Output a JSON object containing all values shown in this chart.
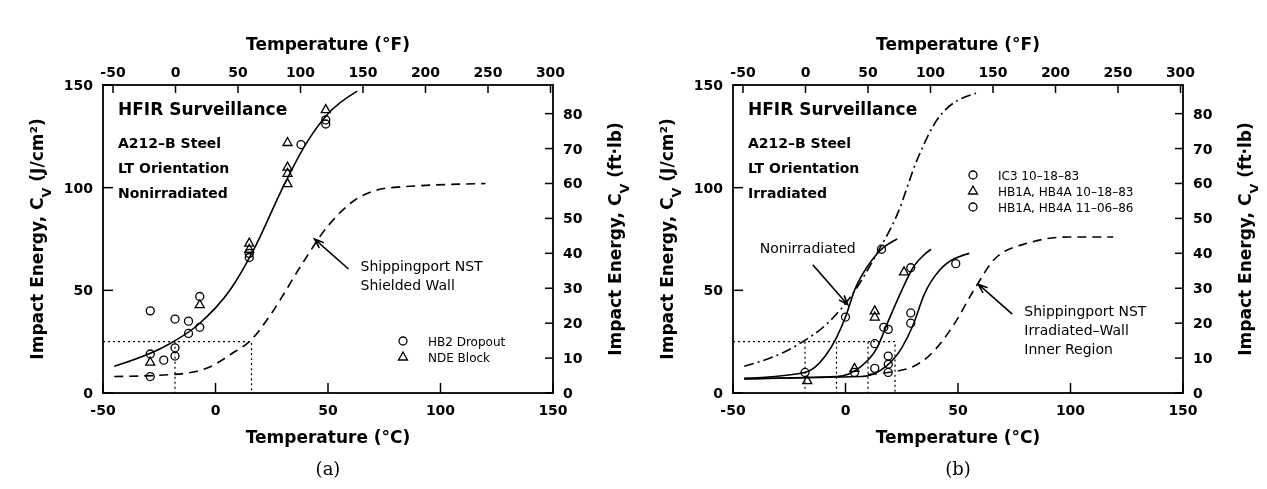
{
  "chart_data": [
    {
      "type": "scatter",
      "title": "(a)",
      "xlabel": "Temperature (°C)",
      "x2label": "Temperature (°F)",
      "ylabel": "Impact Energy, C$_{V}$ (J/cm²)",
      "y2label": "Impact Energy, C$_{V}$ (ft·lb)",
      "xlim": [
        -50,
        150
      ],
      "xticks": [
        -50,
        0,
        50,
        100,
        150
      ],
      "x2lim": [
        -58,
        302
      ],
      "x2ticks": [
        -50,
        0,
        50,
        100,
        150,
        200,
        250,
        300
      ],
      "ylim": [
        0,
        150
      ],
      "yticks": [
        0,
        50,
        100,
        150
      ],
      "y2lim": [
        0,
        88.2
      ],
      "y2ticks": [
        0,
        10,
        20,
        30,
        40,
        50,
        60,
        70,
        80
      ],
      "grid": false,
      "legend": "bottom right",
      "annotations": [
        "HFIR Surveillance",
        "A212–B Steel",
        "LT Orientation",
        "Nonirradiated",
        {
          "text": "Shippingport NST\nShielded Wall",
          "x": 44,
          "y": 75
        }
      ],
      "series": [
        {
          "name": "HB2 Dropout",
          "marker": "circle",
          "color": "#000000",
          "x": [
            -29,
            -29,
            -29,
            -23,
            -18,
            -18,
            -18,
            -12,
            -12,
            -7,
            -7,
            15,
            15,
            38,
            49,
            49
          ],
          "values": [
            40,
            19,
            8,
            16,
            36,
            22,
            18,
            35,
            29,
            47,
            32,
            66,
            68,
            121,
            131,
            133
          ]
        },
        {
          "name": "NDE Block",
          "marker": "triangle",
          "color": "#000000",
          "x": [
            -29,
            -7,
            15,
            15,
            32,
            32,
            32,
            32,
            49
          ],
          "values": [
            15,
            43,
            70,
            73,
            122,
            110,
            107,
            102,
            138
          ]
        },
        {
          "type": "line",
          "line_style": "solid",
          "color": "#000000",
          "x": [
            -45,
            -22,
            -8,
            7,
            18,
            29,
            40,
            50,
            63
          ],
          "values": [
            13,
            23,
            33,
            51,
            72,
            98,
            121,
            136,
            147
          ]
        },
        {
          "type": "line",
          "line_style": "dashed",
          "color": "#000000",
          "x": [
            -45,
            -19,
            -4,
            7,
            16,
            25,
            38,
            49,
            62,
            78,
            120
          ],
          "values": [
            8,
            9,
            12,
            19,
            26,
            39,
            62,
            80,
            94,
            100,
            102
          ]
        },
        {
          "type": "line",
          "line_style": "dotted",
          "color": "#000000",
          "x": [
            -50,
            16,
            16
          ],
          "values": [
            25,
            25,
            0
          ]
        },
        {
          "type": "line",
          "line_style": "dotted",
          "color": "#000000",
          "x": [
            -18,
            -18
          ],
          "values": [
            25,
            0
          ]
        }
      ]
    },
    {
      "type": "scatter",
      "title": "(b)",
      "xlabel": "Temperature (°C)",
      "x2label": "Temperature (°F)",
      "ylabel": "Impact Energy, C$_{V}$ (J/cm²)",
      "y2label": "Impact Energy, C$_{V}$ (ft·lb)",
      "xlim": [
        -50,
        150
      ],
      "xticks": [
        -50,
        0,
        50,
        100,
        150
      ],
      "x2lim": [
        -58,
        302
      ],
      "x2ticks": [
        -50,
        0,
        50,
        100,
        150,
        200,
        250,
        300
      ],
      "ylim": [
        0,
        150
      ],
      "yticks": [
        0,
        50,
        100,
        150
      ],
      "y2lim": [
        0,
        88.2
      ],
      "y2ticks": [
        0,
        10,
        20,
        30,
        40,
        50,
        60,
        70,
        80
      ],
      "grid": false,
      "legend": "top right",
      "annotations": [
        "HFIR Surveillance",
        "A212–B Steel",
        "LT Orientation",
        "Irradiated",
        {
          "text": "Nonirradiated",
          "x": 1,
          "y": 43
        },
        {
          "text": "Shippingport NST\nIrradiated–Wall\nInner Region",
          "x": 59,
          "y": 53
        }
      ],
      "series": [
        {
          "name": "IC3 10–18–83",
          "marker": "circle",
          "color": "#000000",
          "x": [
            -18,
            0,
            16
          ],
          "values": [
            10,
            37,
            70
          ]
        },
        {
          "name": "HB1A, HB4A 10–18–83",
          "marker": "triangle",
          "color": "#000000",
          "x": [
            -17,
            4,
            13,
            13,
            26
          ],
          "values": [
            6,
            12,
            40,
            37,
            59
          ]
        },
        {
          "name": "HB1A, HB4A 11–06–86",
          "marker": "circle",
          "color": "#000000",
          "x": [
            4,
            13,
            13,
            17,
            19,
            19,
            19,
            19,
            29,
            29,
            29,
            49
          ],
          "values": [
            10,
            12,
            24,
            32,
            31,
            18,
            14,
            10,
            39,
            34,
            61,
            63
          ]
        },
        {
          "type": "line",
          "line_style": "solid",
          "color": "#000000",
          "x": [
            -45,
            -18,
            -9,
            -4,
            0,
            4,
            10,
            16,
            23
          ],
          "values": [
            7,
            10,
            18,
            27,
            37,
            50,
            62,
            70,
            75
          ]
        },
        {
          "type": "line",
          "line_style": "solid",
          "color": "#000000",
          "x": [
            -45,
            -4,
            7,
            14,
            19,
            25,
            30,
            38
          ],
          "values": [
            7,
            8,
            13,
            22,
            35,
            50,
            61,
            70
          ]
        },
        {
          "type": "line",
          "line_style": "solid",
          "color": "#000000",
          "x": [
            -45,
            7,
            18,
            25,
            30,
            35,
            42,
            55
          ],
          "values": [
            7,
            8,
            13,
            22,
            33,
            48,
            60,
            68
          ]
        },
        {
          "type": "line",
          "line_style": "dashdot",
          "color": "#000000",
          "x": [
            -45,
            -22,
            -7,
            3,
            14,
            23,
            32,
            42,
            58
          ],
          "values": [
            13,
            23,
            35,
            48,
            68,
            87,
            114,
            135,
            146
          ]
        },
        {
          "type": "line",
          "line_style": "dashed",
          "color": "#000000",
          "x": [
            10,
            28,
            37,
            48,
            57,
            67,
            81,
            99,
            119
          ],
          "values": [
            9,
            12,
            18,
            33,
            50,
            66,
            73,
            76,
            76
          ]
        },
        {
          "type": "line",
          "line_style": "dotted",
          "color": "#000000",
          "x": [
            -50,
            22,
            22
          ],
          "values": [
            25,
            25,
            0
          ]
        },
        {
          "type": "line",
          "line_style": "dotted",
          "color": "#000000",
          "x": [
            -18,
            -18
          ],
          "values": [
            25,
            0
          ]
        },
        {
          "type": "line",
          "line_style": "dotted",
          "color": "#000000",
          "x": [
            -4,
            -4
          ],
          "values": [
            25,
            0
          ]
        },
        {
          "type": "line",
          "line_style": "dotted",
          "color": "#000000",
          "x": [
            10,
            10
          ],
          "values": [
            25,
            0
          ]
        }
      ]
    }
  ]
}
